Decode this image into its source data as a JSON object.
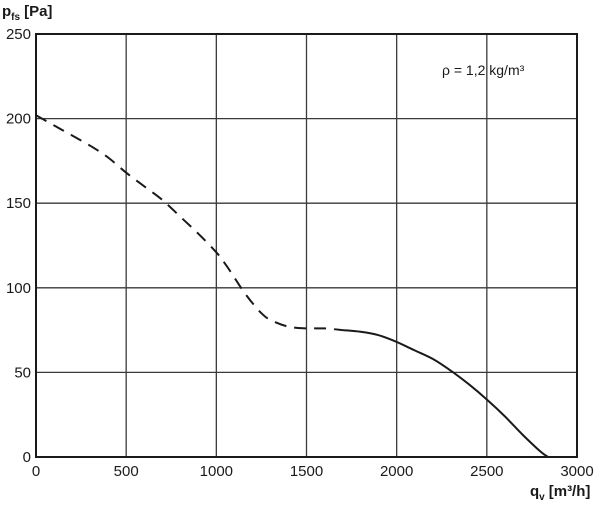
{
  "chart_data": {
    "type": "line",
    "ylabel": {
      "main": "p",
      "sub": "fs",
      "unit": "[Pa]"
    },
    "xlabel": {
      "main": "q",
      "sub": "v",
      "unit": "[m³/h]"
    },
    "annotation": "ρ = 1,2 kg/m³",
    "xlim": [
      0,
      3000
    ],
    "ylim": [
      0,
      250
    ],
    "x_ticks": [
      0,
      500,
      1000,
      1500,
      2000,
      2500,
      3000
    ],
    "y_ticks": [
      0,
      50,
      100,
      150,
      200,
      250
    ],
    "x_tick_labels": [
      "0",
      "500",
      "1000",
      "1500",
      "2000",
      "2500",
      "3000"
    ],
    "y_tick_labels": [
      "0",
      "50",
      "100",
      "150",
      "200",
      "250"
    ],
    "grid": true,
    "series": [
      {
        "style": "dashed",
        "color": "#1a1a1a",
        "x": [
          0,
          100,
          200,
          300,
          400,
          500,
          600,
          700,
          800,
          900,
          1000,
          1050,
          1100,
          1150,
          1200,
          1250,
          1300,
          1400,
          1500,
          1600,
          1700
        ],
        "y": [
          202,
          196,
          190,
          184,
          177,
          168,
          160,
          152,
          142,
          132,
          121,
          114,
          106,
          98,
          91,
          85,
          81,
          77,
          76,
          76,
          75
        ]
      },
      {
        "style": "solid",
        "color": "#1a1a1a",
        "x": [
          1700,
          1800,
          1900,
          2000,
          2100,
          2200,
          2300,
          2400,
          2500,
          2600,
          2700,
          2800,
          2840
        ],
        "y": [
          75,
          74,
          72,
          68,
          63,
          58,
          51,
          43,
          34,
          24,
          13,
          3,
          0
        ]
      }
    ]
  }
}
